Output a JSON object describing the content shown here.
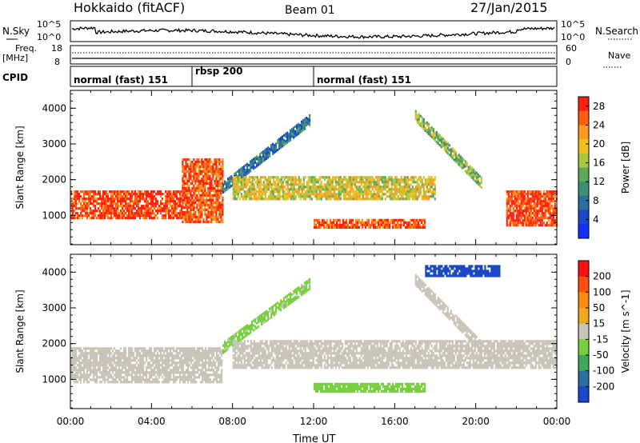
{
  "header": {
    "station": "Hokkaido (fitACF)",
    "beam": "Beam 01",
    "date": "27/Jan/2015"
  },
  "strips": {
    "nsky_label": "N.Sky",
    "nsky_ticks": [
      "10^5",
      "10^0"
    ],
    "nsearch_label": "N.Search",
    "freq_label": "Freq.",
    "freq_unit": "[MHz]",
    "freq_ticks": [
      "18",
      "8"
    ],
    "nave_label": "Nave",
    "nave_ticks": [
      "60",
      "0"
    ],
    "cpid_label": "CPID",
    "cpid_segments": [
      {
        "label": "normal (fast) 151",
        "start_hour": 0,
        "end_hour": 6
      },
      {
        "label": "rbsp 200",
        "start_hour": 6,
        "end_hour": 12
      },
      {
        "label": "normal (fast) 151",
        "start_hour": 12,
        "end_hour": 24
      }
    ]
  },
  "chart_data": [
    {
      "type": "heatmap",
      "title": "",
      "xlabel": "Time UT",
      "ylabel": "Slant Range [km]",
      "x_ticks": [
        "00:00",
        "04:00",
        "08:00",
        "12:00",
        "16:00",
        "20:00",
        "00:00"
      ],
      "xlim_hours": [
        0,
        24
      ],
      "y_ticks": [
        1000,
        2000,
        3000,
        4000
      ],
      "ylim": [
        180,
        4500
      ],
      "colorbar": {
        "label": "Power [dB]",
        "ticks": [
          4,
          8,
          12,
          16,
          20,
          24,
          28
        ],
        "range": [
          0,
          30
        ],
        "colors": [
          "#1030ff",
          "#1a48c8",
          "#2a6fa0",
          "#3f8f74",
          "#5fa85a",
          "#a8c840",
          "#f0c020",
          "#ff9820",
          "#ff6010",
          "#ff2010"
        ]
      },
      "features": [
        {
          "name": "main echo band",
          "start_hour": 0.0,
          "end_hour": 5.5,
          "range_km": [
            900,
            1700
          ],
          "power_db": 27
        },
        {
          "name": "dusk enhancement",
          "start_hour": 5.5,
          "end_hour": 7.5,
          "range_km": [
            800,
            2600
          ],
          "power_db": 26
        },
        {
          "name": "rising band",
          "start_hour": 7.5,
          "end_hour": 11.8,
          "range_km": [
            1800,
            3700
          ],
          "power_db": 8
        },
        {
          "name": "midday band",
          "start_hour": 8.0,
          "end_hour": 18.0,
          "range_km": [
            1450,
            2100
          ],
          "power_db": 18
        },
        {
          "name": "near-range band",
          "start_hour": 12.0,
          "end_hour": 17.5,
          "range_km": [
            650,
            900
          ],
          "power_db": 26
        },
        {
          "name": "late descending band",
          "start_hour": 17.0,
          "end_hour": 20.3,
          "range_km": [
            1900,
            3800
          ],
          "power_db": 15
        },
        {
          "name": "post-midnight echo",
          "start_hour": 21.5,
          "end_hour": 24.0,
          "range_km": [
            700,
            1700
          ],
          "power_db": 27
        }
      ]
    },
    {
      "type": "heatmap",
      "title": "",
      "xlabel": "Time UT",
      "ylabel": "Slant Range [km]",
      "x_ticks": [
        "00:00",
        "04:00",
        "08:00",
        "12:00",
        "16:00",
        "20:00",
        "00:00"
      ],
      "xlim_hours": [
        0,
        24
      ],
      "y_ticks": [
        1000,
        2000,
        3000,
        4000
      ],
      "ylim": [
        180,
        4500
      ],
      "colorbar": {
        "label": "Velocity [m s^-1]",
        "ticks": [
          200,
          100,
          50,
          15,
          -15,
          -50,
          -100,
          -200
        ],
        "range": [
          -250,
          250
        ],
        "colors": [
          "#ff1010",
          "#ff5010",
          "#ff8c10",
          "#f0a820",
          "#c8c4b8",
          "#78d040",
          "#3fa858",
          "#2a6fa0",
          "#1a48c8"
        ]
      },
      "features": [
        {
          "name": "main echo band",
          "start_hour": 0.0,
          "end_hour": 7.5,
          "range_km": [
            900,
            1900
          ],
          "velocity": 0
        },
        {
          "name": "rising band",
          "start_hour": 7.5,
          "end_hour": 11.8,
          "range_km": [
            1900,
            3700
          ],
          "velocity": -40
        },
        {
          "name": "midday band",
          "start_hour": 8.0,
          "end_hour": 24.0,
          "range_km": [
            1300,
            2100
          ],
          "velocity": 0
        },
        {
          "name": "near-range band",
          "start_hour": 12.0,
          "end_hour": 17.5,
          "range_km": [
            650,
            900
          ],
          "velocity": -60
        },
        {
          "name": "late descending band",
          "start_hour": 17.0,
          "end_hour": 20.3,
          "range_km": [
            1900,
            3800
          ],
          "velocity": 0
        },
        {
          "name": "far-range echoes",
          "start_hour": 17.5,
          "end_hour": 21.2,
          "range_km": [
            3900,
            4200
          ],
          "velocity": -220
        }
      ]
    }
  ]
}
